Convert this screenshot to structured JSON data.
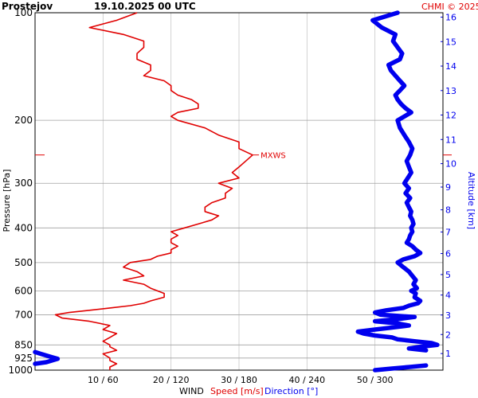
{
  "header": {
    "station": "Prostejov",
    "datetime": "19.10.2025 00 UTC",
    "credit": "CHMI © 2025"
  },
  "colors": {
    "speed": "#e00000",
    "direction": "#0000ee",
    "grid": "#c8c8c8",
    "credit": "#e00000"
  },
  "chart_data": {
    "type": "line",
    "title": "",
    "xlabel_prefix": "WIND",
    "xlabel_speed": "Speed [m/s]",
    "xlabel_direction": "Direction [°]",
    "ylabel": "Pressure [hPa]",
    "ylabel_right": "Altitude [km]",
    "y_scale": "log",
    "ylim": [
      1000,
      100
    ],
    "y_ticks": [
      100,
      200,
      300,
      400,
      500,
      600,
      700,
      850,
      925,
      1000
    ],
    "x_speed_lim": [
      0,
      60
    ],
    "x_ticks": [
      "10 / 60",
      "20 / 120",
      "30 / 180",
      "40 / 240",
      "50 / 300"
    ],
    "altitude_ticks": [
      "1",
      "2",
      "3",
      "4",
      "5",
      "6",
      "7",
      "8",
      "9",
      "10",
      "11",
      "12",
      "13",
      "14",
      "15",
      "16"
    ],
    "max_wind": {
      "label": "MXWS",
      "pressure": 250,
      "speed": 32
    },
    "series": [
      {
        "name": "Speed [m/s]",
        "pressure": [
          1000,
          980,
          960,
          940,
          925,
          900,
          880,
          860,
          850,
          830,
          810,
          790,
          770,
          750,
          730,
          715,
          700,
          690,
          680,
          670,
          660,
          650,
          640,
          625,
          610,
          600,
          590,
          575,
          560,
          545,
          530,
          515,
          500,
          490,
          480,
          470,
          460,
          450,
          440,
          430,
          420,
          410,
          400,
          390,
          380,
          370,
          360,
          350,
          340,
          330,
          320,
          310,
          300,
          290,
          280,
          270,
          260,
          250,
          240,
          230,
          220,
          210,
          200,
          195,
          190,
          185,
          180,
          175,
          170,
          165,
          160,
          155,
          150,
          145,
          140,
          135,
          130,
          125,
          120,
          115,
          110,
          105,
          100
        ],
        "speed": [
          11,
          11,
          12,
          11,
          11,
          10,
          12,
          11,
          11,
          10,
          11,
          12,
          10,
          11,
          8,
          4,
          3,
          5,
          8,
          11,
          14,
          16,
          17,
          19,
          19,
          18,
          17,
          16,
          13,
          16,
          15,
          13,
          14,
          17,
          18,
          20,
          20,
          21,
          20,
          20,
          21,
          20,
          22,
          24,
          26,
          27,
          25,
          25,
          26,
          28,
          28,
          29,
          27,
          30,
          29,
          30,
          31,
          32,
          30,
          30,
          27,
          25,
          21,
          20,
          21,
          24,
          24,
          23,
          21,
          20,
          20,
          19,
          16,
          17,
          17,
          15,
          15,
          16,
          16,
          13,
          8,
          12,
          15
        ]
      },
      {
        "name": "Direction [°]",
        "pressure": [
          1000,
          990,
          980,
          970,
          960,
          950,
          940,
          930,
          920,
          910,
          900,
          890,
          880,
          870,
          860,
          850,
          840,
          830,
          820,
          810,
          800,
          790,
          780,
          770,
          760,
          750,
          740,
          730,
          720,
          710,
          700,
          690,
          680,
          670,
          660,
          650,
          640,
          625,
          610,
          600,
          590,
          575,
          560,
          545,
          530,
          515,
          500,
          490,
          480,
          470,
          460,
          450,
          440,
          430,
          420,
          410,
          400,
          390,
          380,
          370,
          360,
          350,
          340,
          330,
          320,
          310,
          300,
          290,
          280,
          270,
          260,
          250,
          240,
          230,
          220,
          210,
          200,
          195,
          190,
          185,
          180,
          175,
          170,
          165,
          160,
          155,
          150,
          145,
          140,
          135,
          130,
          125,
          120,
          115,
          110,
          105,
          100
        ],
        "direction": [
          300,
          315,
          330,
          345,
          0,
          10,
          15,
          20,
          15,
          10,
          5,
          0,
          345,
          330,
          340,
          355,
          350,
          335,
          320,
          315,
          300,
          290,
          285,
          300,
          315,
          330,
          320,
          300,
          320,
          335,
          305,
          300,
          310,
          325,
          330,
          338,
          340,
          335,
          336,
          332,
          337,
          334,
          336,
          333,
          330,
          325,
          320,
          325,
          335,
          340,
          336,
          333,
          328,
          330,
          331,
          333,
          332,
          334,
          333,
          331,
          332,
          330,
          328,
          331,
          327,
          330,
          326,
          329,
          332,
          330,
          328,
          331,
          333,
          330,
          326,
          322,
          320,
          326,
          332,
          327,
          323,
          320,
          318,
          322,
          326,
          322,
          318,
          314,
          312,
          322,
          324,
          320,
          316,
          318,
          306,
          298,
          320
        ]
      }
    ]
  }
}
